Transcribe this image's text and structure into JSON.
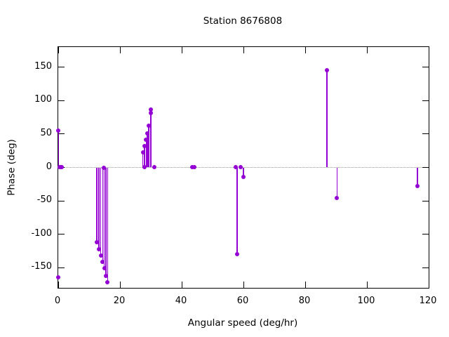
{
  "chart_data": {
    "type": "scatter",
    "style": "impulses-with-points",
    "title": "Station 8676808",
    "xlabel": "Angular speed (deg/hr)",
    "ylabel": "Phase (deg)",
    "xlim": [
      0,
      120
    ],
    "ylim": [
      -180,
      180
    ],
    "xticks": [
      0,
      20,
      40,
      60,
      80,
      100,
      120
    ],
    "yticks": [
      -150,
      -100,
      -50,
      0,
      50,
      100,
      150
    ],
    "grid": false,
    "zero_line": true,
    "legend": "none",
    "colors": {
      "series": "#9400d3",
      "axis": "#000000",
      "zero_line": "#9a9a9a",
      "background": "#ffffff"
    },
    "points": [
      {
        "x": 0.04,
        "y": -164,
        "stem": false
      },
      {
        "x": 0.08,
        "y": 55
      },
      {
        "x": 0.54,
        "y": 1
      },
      {
        "x": 1.02,
        "y": 1
      },
      {
        "x": 1.1,
        "y": 1
      },
      {
        "x": 12.5,
        "y": -112
      },
      {
        "x": 13.2,
        "y": -122
      },
      {
        "x": 13.8,
        "y": -132
      },
      {
        "x": 14.4,
        "y": -141
      },
      {
        "x": 14.7,
        "y": 0
      },
      {
        "x": 14.9,
        "y": -151
      },
      {
        "x": 15.4,
        "y": -162
      },
      {
        "x": 16.0,
        "y": -172
      },
      {
        "x": 27.4,
        "y": 23
      },
      {
        "x": 27.9,
        "y": 1
      },
      {
        "x": 28.0,
        "y": 32
      },
      {
        "x": 28.5,
        "y": 41
      },
      {
        "x": 28.9,
        "y": 51
      },
      {
        "x": 29.3,
        "y": 62
      },
      {
        "x": 29.9,
        "y": 81
      },
      {
        "x": 30.1,
        "y": 87
      },
      {
        "x": 31.1,
        "y": 1
      },
      {
        "x": 43.5,
        "y": 1
      },
      {
        "x": 44.0,
        "y": 1
      },
      {
        "x": 57.4,
        "y": 1
      },
      {
        "x": 58.0,
        "y": -130
      },
      {
        "x": 59.0,
        "y": 1
      },
      {
        "x": 60.0,
        "y": -14
      },
      {
        "x": 87.0,
        "y": 145
      },
      {
        "x": 90.3,
        "y": -46
      },
      {
        "x": 116.4,
        "y": -28
      }
    ]
  }
}
